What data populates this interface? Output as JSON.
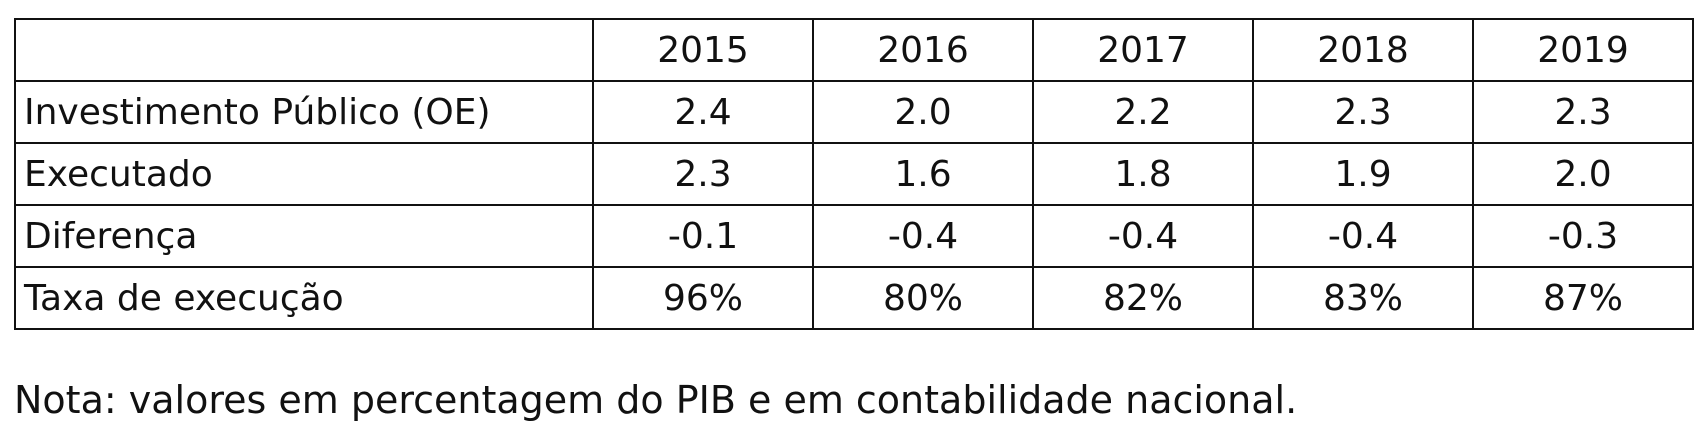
{
  "table": {
    "columns": [
      "2015",
      "2016",
      "2017",
      "2018",
      "2019"
    ],
    "rows": [
      [
        "Investimento Público (OE)",
        "2.4",
        "2.0",
        "2.2",
        "2.3",
        "2.3"
      ],
      [
        "Executado",
        "2.3",
        "1.6",
        "1.8",
        "1.9",
        "2.0"
      ],
      [
        "Diferença",
        "-0.1",
        "-0.4",
        "-0.4",
        "-0.4",
        "-0.3"
      ],
      [
        "Taxa de execução",
        "96%",
        "80%",
        "82%",
        "83%",
        "87%"
      ]
    ]
  },
  "note": "Nota: valores em percentagem do PIB e em contabilidade nacional."
}
